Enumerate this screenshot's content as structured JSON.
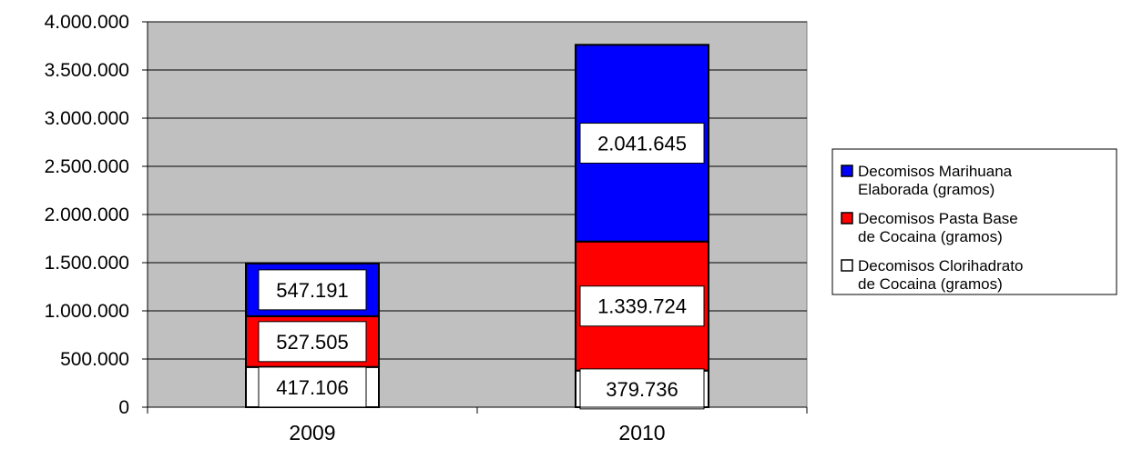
{
  "chart_data": {
    "type": "bar",
    "stacked": true,
    "categories": [
      "2009",
      "2010"
    ],
    "series": [
      {
        "name": "Decomisos Clorihadrato de Cocaina (gramos)",
        "legend_lines": [
          "Decomisos Clorihadrato",
          "de Cocaina (gramos)"
        ],
        "color": "#ffffff",
        "values": [
          417106,
          379736
        ],
        "labels": [
          "417.106",
          "379.736"
        ]
      },
      {
        "name": "Decomisos Pasta Base de Cocaina (gramos)",
        "legend_lines": [
          "Decomisos Pasta Base",
          "de Cocaina (gramos)"
        ],
        "color": "#ff0000",
        "values": [
          527505,
          1339724
        ],
        "labels": [
          "527.505",
          "1.339.724"
        ]
      },
      {
        "name": "Decomisos Marihuana Elaborada (gramos)",
        "legend_lines": [
          "Decomisos Marihuana",
          "Elaborada (gramos)"
        ],
        "color": "#0000ff",
        "values": [
          547191,
          2041645
        ],
        "labels": [
          "547.191",
          "2.041.645"
        ]
      }
    ],
    "ylim": [
      0,
      4000000
    ],
    "yticks": [
      0,
      500000,
      1000000,
      1500000,
      2000000,
      2500000,
      3000000,
      3500000,
      4000000
    ],
    "ytick_labels": [
      "0",
      "500.000",
      "1.000.000",
      "1.500.000",
      "2.000.000",
      "2.500.000",
      "3.000.000",
      "3.500.000",
      "4.000.000"
    ],
    "title": "",
    "xlabel": "",
    "ylabel": "",
    "grid": true,
    "plot_background": "#c0c0c0",
    "legend_position": "right"
  }
}
